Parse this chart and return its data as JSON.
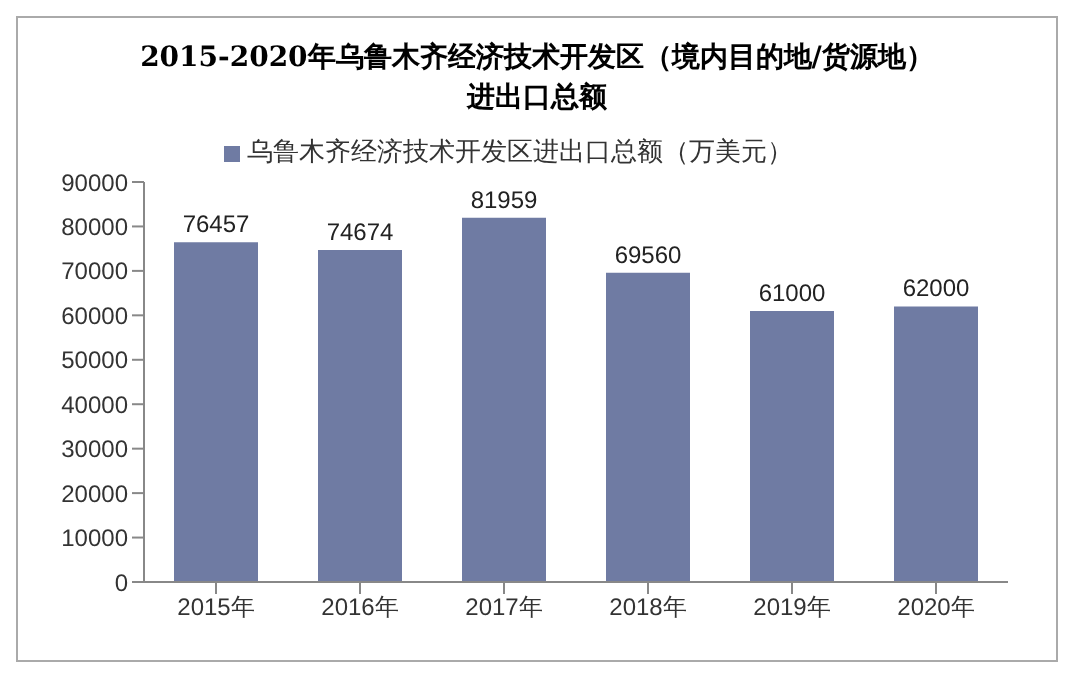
{
  "chart_data": {
    "type": "bar",
    "title": "2015-2020年乌鲁木齐经济技术开发区（境内目的地/货源地）进出口总额",
    "categories": [
      "2015年",
      "2016年",
      "2017年",
      "2018年",
      "2019年",
      "2020年"
    ],
    "series": [
      {
        "name": "乌鲁木齐经济技术开发区进出口总额（万美元）",
        "color": "#6f7ba3",
        "values": [
          76457,
          74674,
          81959,
          69560,
          61000,
          62000
        ]
      }
    ],
    "ylim": [
      0,
      90000
    ],
    "yticks": [
      0,
      10000,
      20000,
      30000,
      40000,
      50000,
      60000,
      70000,
      80000,
      90000
    ],
    "grid": false,
    "legend": "top",
    "data_labels": true
  }
}
